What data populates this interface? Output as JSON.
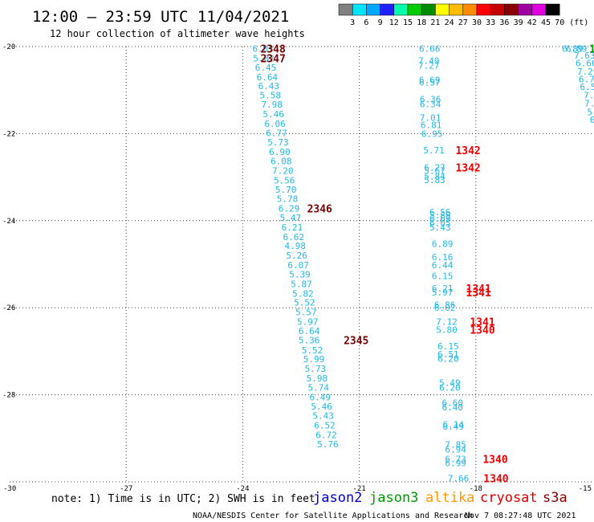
{
  "header": {
    "title": "12:00 – 23:59 UTC 11/04/2021",
    "subtitle": "12 hour collection of altimeter wave heights"
  },
  "color_scale": {
    "labels": [
      "3",
      "6",
      "9",
      "12",
      "15",
      "18",
      "21",
      "24",
      "27",
      "30",
      "33",
      "36",
      "39",
      "42",
      "45",
      "70"
    ],
    "unit": "(ft)",
    "colors": [
      "#808080",
      "#00e5ff",
      "#00a8ff",
      "#1f1fff",
      "#00ffaa",
      "#00cc00",
      "#008c00",
      "#ffff00",
      "#ffbb00",
      "#ff8c00",
      "#ff0000",
      "#c80000",
      "#8b0000",
      "#a000a0",
      "#e000e0",
      "#000000"
    ]
  },
  "footer": {
    "note": "note:  1) Time is in UTC;  2) SWH is in feet",
    "credit": "NOAA/NESDIS Center for Satellite Applications and Research",
    "timestamp": "Nov  7 08:27:48 UTC 2021"
  },
  "legend": [
    {
      "label": "jason2",
      "color": "#0000cc"
    },
    {
      "label": "jason3",
      "color": "#009900"
    },
    {
      "label": "altika",
      "color": "#ff9900"
    },
    {
      "label": "cryosat",
      "color": "#dd0000"
    },
    {
      "label": "s3a",
      "color": "#8b0000"
    }
  ],
  "chart_data": {
    "type": "scatter",
    "x_ticks": [
      "-30",
      "-27",
      "-24",
      "-21",
      "-18",
      "-15"
    ],
    "y_ticks": [
      "-20",
      "-22",
      "-24",
      "-26",
      "-28",
      "-30"
    ],
    "xlim": [
      -30,
      -15
    ],
    "ylim": [
      -30,
      -20
    ],
    "grid": true,
    "colors": {
      "value": "#22b8e8",
      "pass_s3a": "#7a0000",
      "pass_cryosat": "#ee0000"
    },
    "values": [
      {
        "lon": -23.48,
        "lat": -20.05,
        "v": "6.03"
      },
      {
        "lon": -23.46,
        "lat": -20.27,
        "v": "5.82"
      },
      {
        "lon": -23.41,
        "lat": -20.48,
        "v": "6.45"
      },
      {
        "lon": -23.37,
        "lat": -20.7,
        "v": "6.64"
      },
      {
        "lon": -23.33,
        "lat": -20.9,
        "v": "6.43"
      },
      {
        "lon": -23.29,
        "lat": -21.12,
        "v": "5.58"
      },
      {
        "lon": -23.25,
        "lat": -21.33,
        "v": "7.98"
      },
      {
        "lon": -23.21,
        "lat": -21.55,
        "v": "5.46"
      },
      {
        "lon": -23.17,
        "lat": -21.77,
        "v": "6.06"
      },
      {
        "lon": -23.13,
        "lat": -21.98,
        "v": "6.77"
      },
      {
        "lon": -23.09,
        "lat": -22.2,
        "v": "5.73"
      },
      {
        "lon": -23.05,
        "lat": -22.42,
        "v": "6.90"
      },
      {
        "lon": -23.01,
        "lat": -22.63,
        "v": "6.08"
      },
      {
        "lon": -22.97,
        "lat": -22.85,
        "v": "7.20"
      },
      {
        "lon": -22.93,
        "lat": -23.07,
        "v": "5.56"
      },
      {
        "lon": -22.89,
        "lat": -23.28,
        "v": "5.70"
      },
      {
        "lon": -22.85,
        "lat": -23.5,
        "v": "5.78"
      },
      {
        "lon": -22.81,
        "lat": -23.72,
        "v": "6.29"
      },
      {
        "lon": -22.77,
        "lat": -23.93,
        "v": "5.47"
      },
      {
        "lon": -22.73,
        "lat": -24.15,
        "v": "6.21"
      },
      {
        "lon": -22.69,
        "lat": -24.37,
        "v": "6.62"
      },
      {
        "lon": -22.65,
        "lat": -24.58,
        "v": "4.98"
      },
      {
        "lon": -22.61,
        "lat": -24.8,
        "v": "5.26"
      },
      {
        "lon": -22.57,
        "lat": -25.02,
        "v": "6.07"
      },
      {
        "lon": -22.53,
        "lat": -25.23,
        "v": "5.39"
      },
      {
        "lon": -22.49,
        "lat": -25.45,
        "v": "5.87"
      },
      {
        "lon": -22.45,
        "lat": -25.67,
        "v": "5.82"
      },
      {
        "lon": -22.41,
        "lat": -25.88,
        "v": "5.52"
      },
      {
        "lon": -22.37,
        "lat": -26.1,
        "v": "5.57"
      },
      {
        "lon": -22.33,
        "lat": -26.32,
        "v": "5.97"
      },
      {
        "lon": -22.29,
        "lat": -26.53,
        "v": "6.64"
      },
      {
        "lon": -22.29,
        "lat": -26.74,
        "v": "5.36"
      },
      {
        "lon": -22.21,
        "lat": -26.97,
        "v": "5.52"
      },
      {
        "lon": -22.17,
        "lat": -27.18,
        "v": "5.99"
      },
      {
        "lon": -22.13,
        "lat": -27.4,
        "v": "5.73"
      },
      {
        "lon": -22.09,
        "lat": -27.62,
        "v": "5.98"
      },
      {
        "lon": -22.05,
        "lat": -27.83,
        "v": "5.74"
      },
      {
        "lon": -22.01,
        "lat": -28.05,
        "v": "6.49"
      },
      {
        "lon": -21.97,
        "lat": -28.27,
        "v": "5.46"
      },
      {
        "lon": -21.93,
        "lat": -28.48,
        "v": "5.43"
      },
      {
        "lon": -21.89,
        "lat": -28.7,
        "v": "6.52"
      },
      {
        "lon": -21.85,
        "lat": -28.92,
        "v": "6.72"
      },
      {
        "lon": -21.81,
        "lat": -29.13,
        "v": "5.76"
      },
      {
        "lon": -19.19,
        "lat": -20.05,
        "v": "6.66"
      },
      {
        "lon": -19.21,
        "lat": -20.32,
        "v": "7.49"
      },
      {
        "lon": -19.21,
        "lat": -20.43,
        "v": "7.27"
      },
      {
        "lon": -19.19,
        "lat": -20.77,
        "v": "6.69"
      },
      {
        "lon": -19.19,
        "lat": -20.82,
        "v": "6.57"
      },
      {
        "lon": -19.17,
        "lat": -21.21,
        "v": "6.36"
      },
      {
        "lon": -19.17,
        "lat": -21.32,
        "v": "6.34"
      },
      {
        "lon": -19.17,
        "lat": -21.63,
        "v": "7.01"
      },
      {
        "lon": -19.15,
        "lat": -21.8,
        "v": "6.81"
      },
      {
        "lon": -19.13,
        "lat": -22.0,
        "v": "6.95"
      },
      {
        "lon": -19.08,
        "lat": -22.38,
        "v": "5.71"
      },
      {
        "lon": -19.06,
        "lat": -22.78,
        "v": "6.27"
      },
      {
        "lon": -19.06,
        "lat": -22.85,
        "v": "5.67"
      },
      {
        "lon": -19.06,
        "lat": -22.98,
        "v": "5.84"
      },
      {
        "lon": -19.06,
        "lat": -23.06,
        "v": "5.83"
      },
      {
        "lon": -18.92,
        "lat": -23.8,
        "v": "6.56"
      },
      {
        "lon": -18.92,
        "lat": -23.87,
        "v": "5.89"
      },
      {
        "lon": -18.92,
        "lat": -23.95,
        "v": "6.69"
      },
      {
        "lon": -18.92,
        "lat": -24.05,
        "v": "6.05"
      },
      {
        "lon": -18.92,
        "lat": -24.15,
        "v": "5.43"
      },
      {
        "lon": -18.86,
        "lat": -24.53,
        "v": "6.89"
      },
      {
        "lon": -18.86,
        "lat": -24.83,
        "v": "6.16"
      },
      {
        "lon": -18.86,
        "lat": -25.02,
        "v": "6.44"
      },
      {
        "lon": -18.86,
        "lat": -25.27,
        "v": "6.15"
      },
      {
        "lon": -18.86,
        "lat": -25.55,
        "v": "6.21"
      },
      {
        "lon": -18.86,
        "lat": -25.65,
        "v": "5.97"
      },
      {
        "lon": -18.8,
        "lat": -25.93,
        "v": "6.86"
      },
      {
        "lon": -18.8,
        "lat": -26.0,
        "v": "6.02"
      },
      {
        "lon": -18.75,
        "lat": -26.32,
        "v": "7.12"
      },
      {
        "lon": -18.75,
        "lat": -26.5,
        "v": "5.80"
      },
      {
        "lon": -18.71,
        "lat": -26.88,
        "v": "6.15"
      },
      {
        "lon": -18.71,
        "lat": -27.07,
        "v": "6.51"
      },
      {
        "lon": -18.71,
        "lat": -27.17,
        "v": "6.20"
      },
      {
        "lon": -18.67,
        "lat": -27.72,
        "v": "5.49"
      },
      {
        "lon": -18.67,
        "lat": -27.83,
        "v": "6.20"
      },
      {
        "lon": -18.6,
        "lat": -28.18,
        "v": "6.60"
      },
      {
        "lon": -18.6,
        "lat": -28.28,
        "v": "6.40"
      },
      {
        "lon": -18.58,
        "lat": -28.68,
        "v": "6.14"
      },
      {
        "lon": -18.58,
        "lat": -28.73,
        "v": "6.49"
      },
      {
        "lon": -18.52,
        "lat": -29.14,
        "v": "7.85"
      },
      {
        "lon": -18.52,
        "lat": -29.25,
        "v": "6.94"
      },
      {
        "lon": -18.52,
        "lat": -29.47,
        "v": "6.73"
      },
      {
        "lon": -18.52,
        "lat": -29.57,
        "v": "6.99"
      },
      {
        "lon": -18.45,
        "lat": -29.92,
        "v": "7.66"
      },
      {
        "lon": -15.41,
        "lat": -20.05,
        "v": "6.89"
      },
      {
        "lon": -15.51,
        "lat": -20.05,
        "v": "6.89"
      },
      {
        "lon": -15.2,
        "lat": -20.2,
        "v": "7.63"
      },
      {
        "lon": -15.16,
        "lat": -20.38,
        "v": "6.66"
      },
      {
        "lon": -15.12,
        "lat": -20.57,
        "v": "7.29"
      },
      {
        "lon": -15.08,
        "lat": -20.75,
        "v": "6.75"
      },
      {
        "lon": -15.05,
        "lat": -20.92,
        "v": "6.57"
      },
      {
        "lon": -15.02,
        "lat": -21.12,
        "v": "7.5"
      },
      {
        "lon": -15.0,
        "lat": -21.3,
        "v": "7.3"
      },
      {
        "lon": -15.0,
        "lat": -21.5,
        "v": "5."
      },
      {
        "lon": -15.0,
        "lat": -21.68,
        "v": "6"
      }
    ],
    "passes": [
      {
        "lon": -23.22,
        "lat": -20.05,
        "v": "2348",
        "sat": "s3a"
      },
      {
        "lon": -23.22,
        "lat": -20.27,
        "v": "2347",
        "sat": "s3a"
      },
      {
        "lon": -22.02,
        "lat": -23.72,
        "v": "2346",
        "sat": "s3a"
      },
      {
        "lon": -21.08,
        "lat": -26.74,
        "v": "2345",
        "sat": "s3a"
      },
      {
        "lon": -18.2,
        "lat": -22.38,
        "v": "1342",
        "sat": "cryosat"
      },
      {
        "lon": -18.2,
        "lat": -22.78,
        "v": "1342",
        "sat": "cryosat"
      },
      {
        "lon": -17.93,
        "lat": -25.55,
        "v": "1341",
        "sat": "cryosat"
      },
      {
        "lon": -17.93,
        "lat": -25.65,
        "v": "1341",
        "sat": "cryosat"
      },
      {
        "lon": -17.83,
        "lat": -26.32,
        "v": "1341",
        "sat": "cryosat"
      },
      {
        "lon": -17.83,
        "lat": -26.5,
        "v": "1340",
        "sat": "cryosat"
      },
      {
        "lon": -17.5,
        "lat": -29.47,
        "v": "1340",
        "sat": "cryosat"
      },
      {
        "lon": -17.48,
        "lat": -29.92,
        "v": "1340",
        "sat": "cryosat"
      },
      {
        "lon": -15.0,
        "lat": -20.05,
        "v": "1",
        "sat": "jason3"
      }
    ]
  }
}
